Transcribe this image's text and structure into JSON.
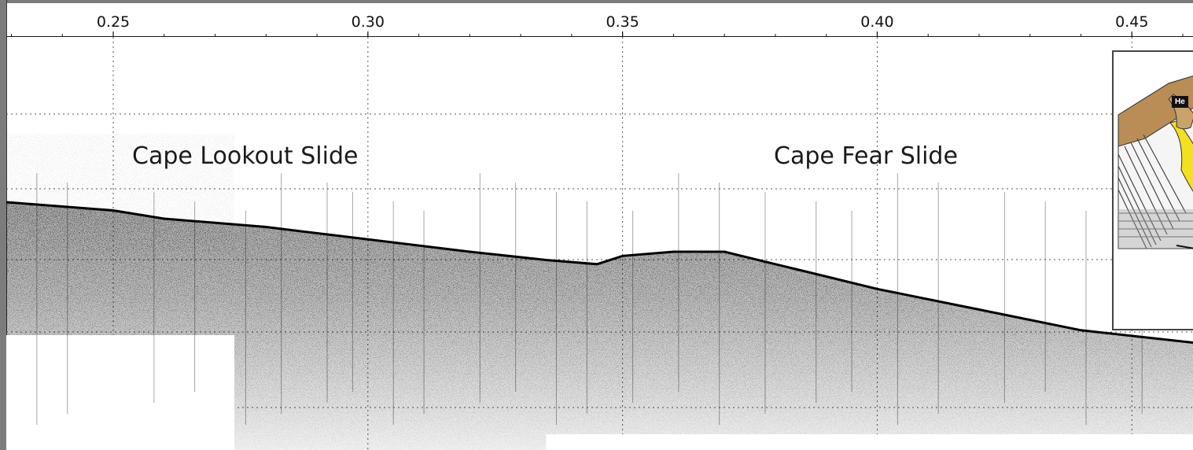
{
  "chart_data": {
    "type": "scatter",
    "title": "",
    "xlabel": "",
    "ylabel": "",
    "xlim": [
      0.229,
      0.462
    ],
    "x_ticks": [
      0.25,
      0.3,
      0.35,
      0.4,
      0.45
    ],
    "x_tick_labels": [
      "0.25",
      "0.30",
      "0.35",
      "0.40",
      "0.45"
    ],
    "x_minor_step": 0.01,
    "grid": true,
    "grid_style": "dotted",
    "annotations": [
      {
        "text": "Cape Lookout Slide",
        "x": 0.252
      },
      {
        "text": "Cape Fear Slide",
        "x": 0.374
      }
    ],
    "seafloor_profile": {
      "x": [
        0.229,
        0.25,
        0.26,
        0.28,
        0.3,
        0.32,
        0.335,
        0.345,
        0.35,
        0.36,
        0.37,
        0.38,
        0.39,
        0.4,
        0.42,
        0.44,
        0.462
      ],
      "depth": [
        0.4,
        0.42,
        0.44,
        0.46,
        0.49,
        0.52,
        0.54,
        0.55,
        0.53,
        0.52,
        0.52,
        0.55,
        0.58,
        0.61,
        0.66,
        0.71,
        0.74
      ]
    },
    "colors": {
      "data": "#000000",
      "frame": "#7c7c7c",
      "grid": "#555555"
    }
  },
  "inset": {
    "label": "He",
    "icon": "block-diagram-slide-illustration",
    "colors": {
      "terrain": "#b98d55",
      "slide": "#f3e021",
      "strata": "#888888"
    }
  }
}
